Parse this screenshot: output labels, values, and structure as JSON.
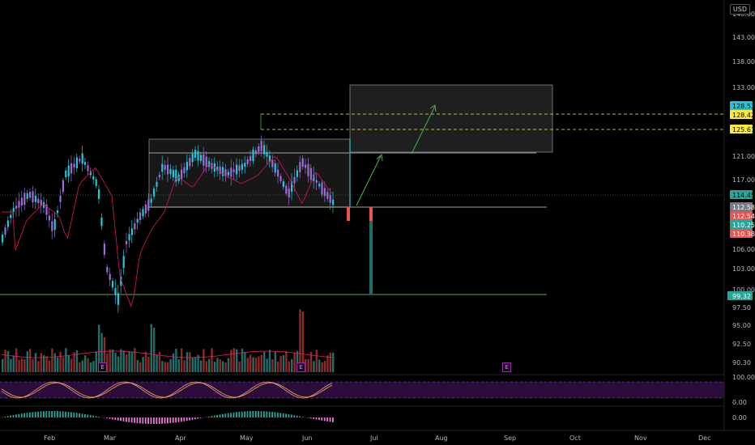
{
  "currency": "USD",
  "price_axis": {
    "labels": [
      "148.00",
      "143.00",
      "138.00",
      "133.00",
      "121.00",
      "117.00",
      "106.00",
      "103.00",
      "100.00",
      "97.50",
      "95.00",
      "92.50",
      "90.30"
    ],
    "badges": [
      {
        "label": "128.53",
        "color": "#26c6da",
        "text": "#000000"
      },
      {
        "label": "128.42",
        "color": "#ffeb3b",
        "text": "#000000"
      },
      {
        "label": "125.61",
        "color": "#ffeb3b",
        "text": "#000000"
      },
      {
        "label": "114.45",
        "color": "#26a69a",
        "text": "#000000"
      },
      {
        "label": "112.58",
        "color": "#787b86",
        "text": "#ffffff"
      },
      {
        "label": "112.54",
        "color": "#ef5350",
        "text": "#ffffff"
      },
      {
        "label": "110.25",
        "color": "#26a69a",
        "text": "#ffffff"
      },
      {
        "label": "110.38",
        "color": "#ef5350",
        "text": "#ffffff"
      },
      {
        "label": "99.32",
        "color": "#26a69a",
        "text": "#ffffff"
      }
    ]
  },
  "oscillator_axis": {
    "labels": [
      "100.00",
      "0.00"
    ]
  },
  "macd_axis": {
    "labels": [
      "0.00"
    ]
  },
  "time_axis": {
    "labels": [
      "Feb",
      "Mar",
      "Apr",
      "May",
      "Jun",
      "Jul",
      "Aug",
      "Sep",
      "Oct",
      "Nov",
      "Dec"
    ]
  },
  "earnings_markers": [
    {
      "label": "E"
    },
    {
      "label": "E"
    },
    {
      "label": "E"
    }
  ],
  "colors": {
    "up": "#26c6da",
    "down": "#9c6bd6",
    "ma": "#c2185b",
    "target": "#4caf50",
    "level": "#ffeb3b",
    "oscillator_band": "#2a0d3a"
  }
}
